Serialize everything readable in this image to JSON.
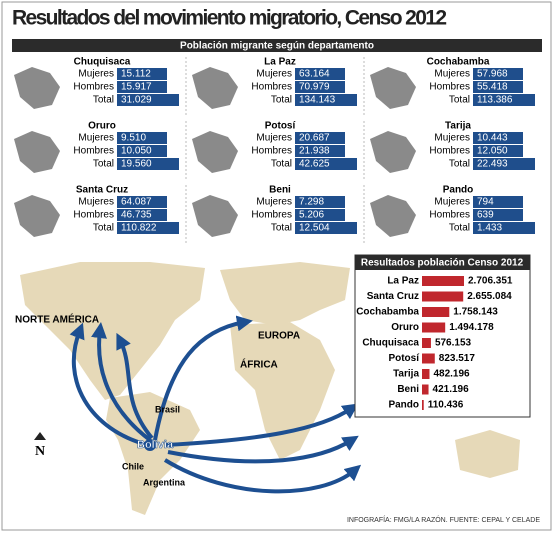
{
  "title": "Resultados del movimiento migratorio, Censo 2012",
  "subtitle": "Población migrante según departamento",
  "row_labels": [
    "Mujeres",
    "Hombres",
    "Total"
  ],
  "departments": [
    {
      "name": "Chuquisaca",
      "values": [
        "15.112",
        "15.917",
        "31.029"
      ]
    },
    {
      "name": "La Paz",
      "values": [
        "63.164",
        "70.979",
        "134.143"
      ]
    },
    {
      "name": "Cochabamba",
      "values": [
        "57.968",
        "55.418",
        "113.386"
      ]
    },
    {
      "name": "Oruro",
      "values": [
        "9.510",
        "10.050",
        "19.560"
      ]
    },
    {
      "name": "Potosí",
      "values": [
        "20.687",
        "21.938",
        "42.625"
      ]
    },
    {
      "name": "Tarija",
      "values": [
        "10.443",
        "12.050",
        "22.493"
      ]
    },
    {
      "name": "Santa Cruz",
      "values": [
        "64.087",
        "46.735",
        "110.822"
      ]
    },
    {
      "name": "Beni",
      "values": [
        "7.298",
        "5.206",
        "12.504"
      ]
    },
    {
      "name": "Pando",
      "values": [
        "794",
        "639",
        "1.433"
      ]
    }
  ],
  "map_labels": {
    "north_america": "NORTE AMÉRICA",
    "europe": "EUROPA",
    "africa": "ÁFRICA",
    "brasil": "Brasil",
    "bolivia": "Bolivia",
    "chile": "Chile",
    "argentina": "Argentina",
    "north": "N"
  },
  "credit": "INFOGRAFÍA: FMG/LA RAZÓN. FUENTE: CEPAL Y CELADE",
  "chart_data": {
    "type": "bar",
    "title": "Resultados población Censo 2012",
    "color": "#c0272d",
    "categories": [
      "La Paz",
      "Santa Cruz",
      "Cochabamba",
      "Oruro",
      "Chuquisaca",
      "Potosí",
      "Tarija",
      "Beni",
      "Pando"
    ],
    "values": [
      2706351,
      2655084,
      1758143,
      1494178,
      576153,
      823517,
      482196,
      421196,
      110436
    ],
    "value_labels": [
      "2.706.351",
      "2.655.084",
      "1.758.143",
      "1.494.178",
      "576.153",
      "823.517",
      "482.196",
      "421.196",
      "110.436"
    ]
  }
}
